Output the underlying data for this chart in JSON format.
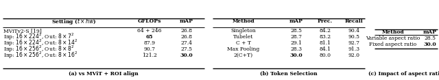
{
  "table_a": {
    "caption": "(a) vs MViT + ROI align",
    "col_headers": [
      "Setting ($t \\times hw$)",
      "GFLOPs",
      "mAP"
    ],
    "rows": [
      {
        "setting": "MViTv2-S [19]",
        "gflops": "64 + 246",
        "map": "26.8",
        "bold_gflops": false,
        "bold_map": false,
        "ref": true
      },
      {
        "setting": "Inp: $16 \\times 224^2$, Out: $8 \\times 7^2$",
        "gflops": "65",
        "map": "26.8",
        "bold_gflops": true,
        "bold_map": false,
        "ref": false
      },
      {
        "setting": "Inp: $16 \\times 224^2$, Out: $8 \\times 14^2$",
        "gflops": "87.9",
        "map": "27.4",
        "bold_gflops": false,
        "bold_map": false,
        "ref": false
      },
      {
        "setting": "Inp: $16 \\times 256^2$, Out: $8 \\times 8^2$",
        "gflops": "90.7",
        "map": "27.5",
        "bold_gflops": false,
        "bold_map": false,
        "ref": false
      },
      {
        "setting": "Inp: $16 \\times 256^2$, Out: $8 \\times 16^2$",
        "gflops": "121.2",
        "map": "30.0",
        "bold_gflops": false,
        "bold_map": true,
        "ref": false
      }
    ]
  },
  "table_b": {
    "caption": "(b) Token Selection",
    "col_headers": [
      "Method",
      "mAP",
      "Prec.",
      "Recall"
    ],
    "rows": [
      {
        "method": "Singleton",
        "map": "28.5",
        "prec": "84.2",
        "recall": "90.4",
        "bold_map": false
      },
      {
        "method": "Tubelet",
        "map": "28.7",
        "prec": "83.2",
        "recall": "90.5",
        "bold_map": false
      },
      {
        "method": "C + T",
        "map": "29.1",
        "prec": "81.1",
        "recall": "92.7",
        "bold_map": false
      },
      {
        "method": "Max Pooling",
        "map": "28.3",
        "prec": "84.1",
        "recall": "91.3",
        "bold_map": false
      },
      {
        "method": "2(C+T)",
        "map": "30.0",
        "prec": "80.0",
        "recall": "92.0",
        "bold_map": true
      }
    ]
  },
  "table_c": {
    "caption": "(c) Impact of aspect ratio",
    "col_headers": [
      "Method",
      "mAP"
    ],
    "rows": [
      {
        "method": "Variable aspect ratio",
        "map": "28.5",
        "bold_map": false
      },
      {
        "method": "Fixed aspect ratio",
        "map": "30.0",
        "bold_map": true
      }
    ]
  },
  "font_size": 5.5,
  "font_family": "DejaVu Serif"
}
